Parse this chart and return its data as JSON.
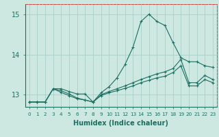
{
  "xlabel": "Humidex (Indice chaleur)",
  "xlim": [
    -0.5,
    23.5
  ],
  "ylim": [
    12.7,
    15.25
  ],
  "yticks": [
    13,
    14,
    15
  ],
  "xticks": [
    0,
    1,
    2,
    3,
    4,
    5,
    6,
    7,
    8,
    9,
    10,
    11,
    12,
    13,
    14,
    15,
    16,
    17,
    18,
    19,
    20,
    21,
    22,
    23
  ],
  "background_color": "#cce8e0",
  "grid_color": "#aad0c8",
  "line_color": "#1a6e62",
  "series": [
    [
      12.82,
      12.82,
      12.82,
      13.15,
      13.15,
      13.08,
      13.02,
      13.02,
      12.82,
      13.05,
      13.2,
      13.42,
      13.75,
      14.18,
      14.82,
      15.0,
      14.82,
      14.72,
      14.3,
      13.92,
      13.82,
      13.82,
      13.72,
      13.68
    ],
    [
      12.82,
      12.82,
      12.82,
      13.15,
      13.1,
      13.02,
      12.92,
      12.87,
      12.82,
      13.0,
      13.08,
      13.15,
      13.22,
      13.3,
      13.38,
      13.45,
      13.52,
      13.57,
      13.65,
      13.88,
      13.3,
      13.3,
      13.48,
      13.38
    ],
    [
      12.82,
      12.82,
      12.82,
      13.15,
      13.06,
      12.98,
      12.9,
      12.87,
      12.82,
      12.98,
      13.05,
      13.1,
      13.16,
      13.22,
      13.3,
      13.36,
      13.42,
      13.46,
      13.55,
      13.72,
      13.22,
      13.22,
      13.38,
      13.3
    ]
  ]
}
